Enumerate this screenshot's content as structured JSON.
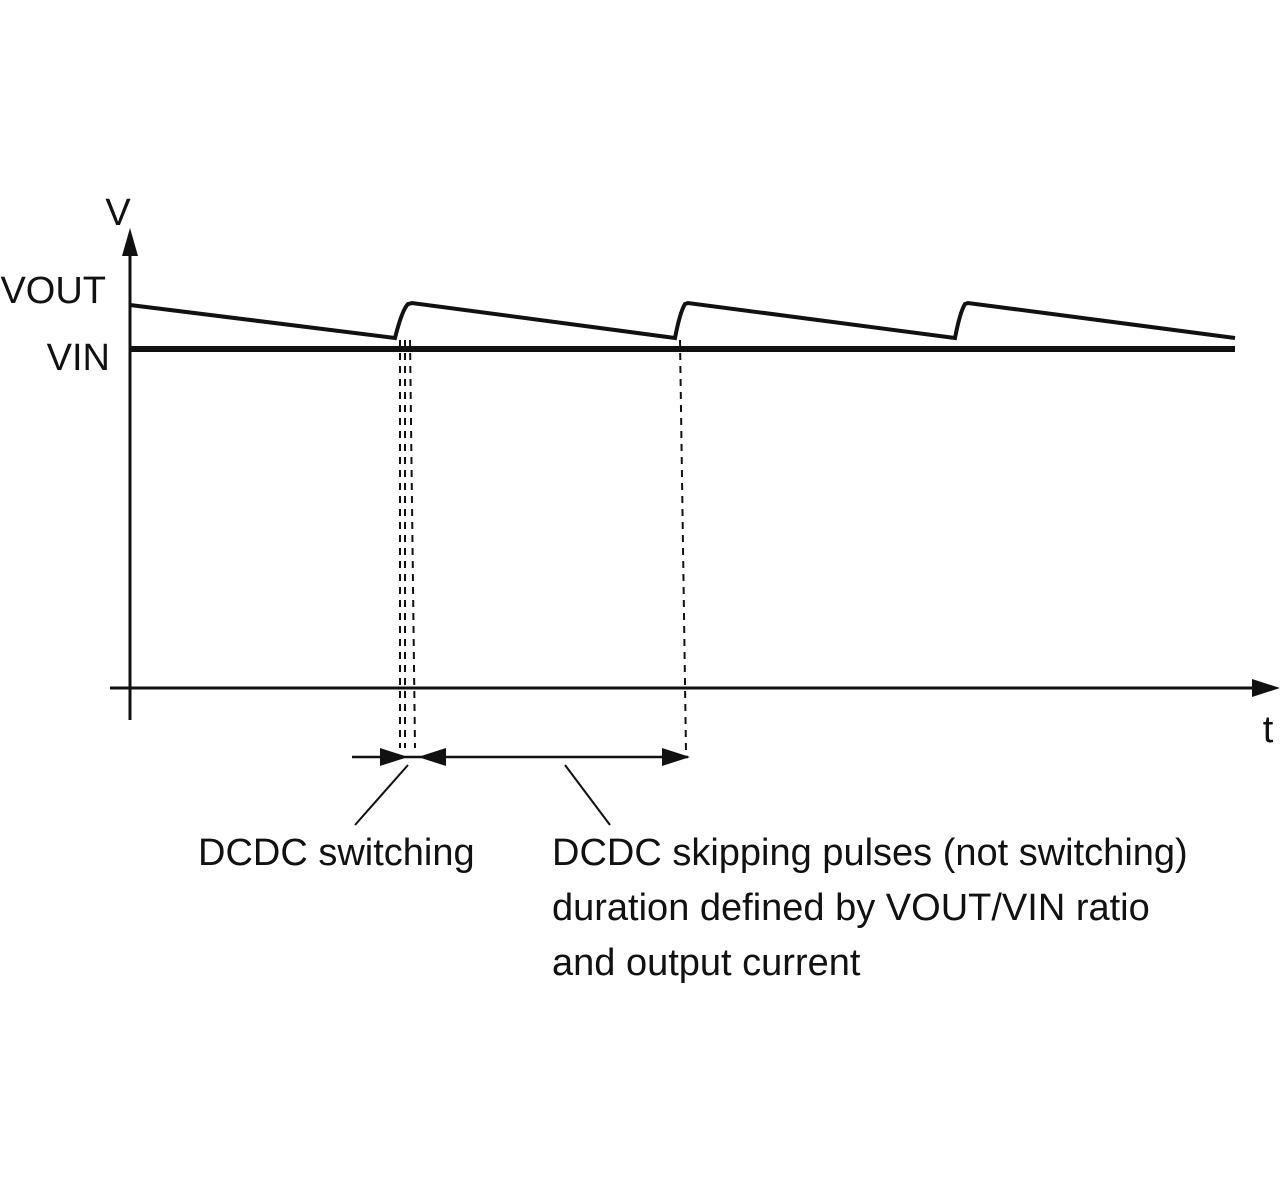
{
  "axes": {
    "y_label": "V",
    "x_label": "t"
  },
  "levels": {
    "vout": "VOUT",
    "vin": "VIN"
  },
  "annotations": {
    "switching": "DCDC switching",
    "skipping": [
      "DCDC skipping pulses (not switching)",
      "duration defined by VOUT/VIN ratio",
      "and output current"
    ]
  }
}
